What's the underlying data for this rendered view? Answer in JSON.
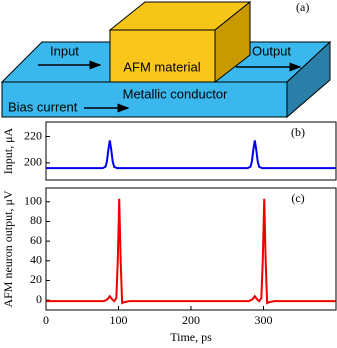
{
  "diagram": {
    "panel_label": "(a)",
    "input": "Input",
    "output": "Output",
    "material": "AFM material",
    "conductor": "Metallic conductor",
    "bias": "Bias current"
  },
  "chart_data": [
    {
      "type": "line",
      "panel_label": "(b)",
      "ylabel": "Input, μA",
      "x": [
        0,
        78,
        82,
        84,
        86,
        88,
        90,
        92,
        94,
        98,
        278,
        282,
        284,
        286,
        288,
        290,
        292,
        294,
        298,
        400
      ],
      "series": [
        {
          "color": "#0000ee",
          "values": [
            196,
            196,
            197,
            201,
            210,
            217,
            210,
            201,
            197,
            196,
            196,
            197,
            201,
            210,
            217,
            210,
            201,
            197,
            196,
            196
          ]
        }
      ],
      "xlim": [
        0,
        400
      ],
      "ylim": [
        187,
        231
      ],
      "yticks": [
        200,
        220
      ]
    },
    {
      "type": "line",
      "panel_label": "(c)",
      "ylabel": "AFM neuron output, μV",
      "xlabel": "Time, ps",
      "x": [
        0,
        80,
        85,
        88,
        91,
        94,
        97,
        99,
        101,
        103,
        105,
        108,
        115,
        280,
        285,
        288,
        291,
        294,
        297,
        299,
        301,
        303,
        305,
        308,
        315,
        400
      ],
      "series": [
        {
          "color": "#ee0000",
          "values": [
            -1,
            -1,
            1,
            4,
            1,
            -1,
            2,
            40,
            103,
            40,
            -3,
            -2,
            -1,
            -1,
            1,
            4,
            1,
            -1,
            2,
            40,
            103,
            40,
            -3,
            -2,
            -1,
            -1
          ]
        }
      ],
      "xlim": [
        0,
        400
      ],
      "ylim": [
        -10,
        114
      ],
      "xticks": [
        0,
        100,
        200,
        300
      ],
      "yticks": [
        0,
        20,
        40,
        60,
        80,
        100
      ]
    }
  ]
}
